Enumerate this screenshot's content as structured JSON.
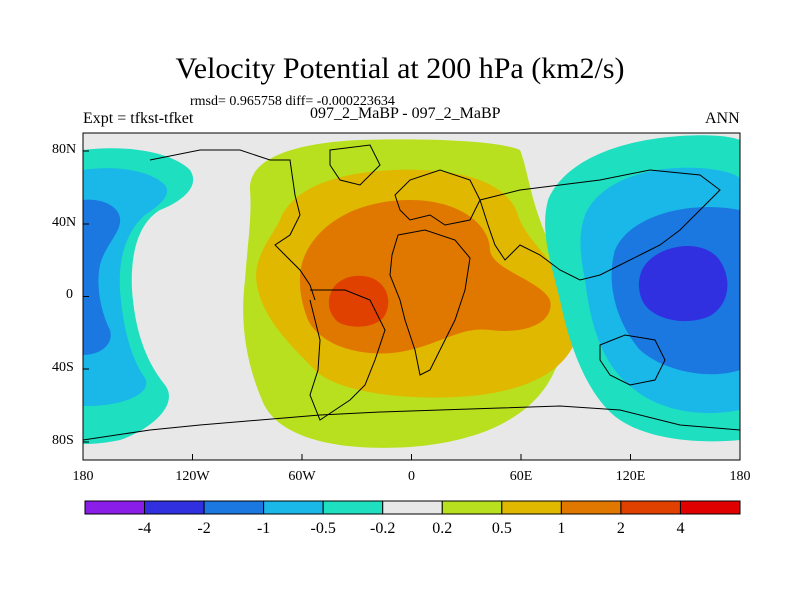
{
  "title": "Velocity Potential at 200 hPa (km2/s)",
  "stats_line": "rmsd= 0.965758 diff= -0.000223634",
  "expt_label": "Expt = tfkst-tfket",
  "case_label": "097_2_MaBP - 097_2_MaBP",
  "season_label": "ANN",
  "map": {
    "projection": "cylindrical-equidistant",
    "lon_range": [
      -180,
      180
    ],
    "lat_range": [
      -90,
      90
    ],
    "xticks": [
      "180",
      "120W",
      "60W",
      "0",
      "60E",
      "120E",
      "180"
    ],
    "yticks": [
      "80N",
      "40N",
      "0",
      "40S",
      "80S"
    ]
  },
  "colorbar": {
    "labels": [
      "-4",
      "-2",
      "-1",
      "-0.5",
      "-0.2",
      "0.2",
      "0.5",
      "1",
      "2",
      "4"
    ],
    "colors": [
      "#8a1ee8",
      "#3030e0",
      "#1a78e0",
      "#1ab8e8",
      "#1ee0c0",
      "#e8e8e8",
      "#b8e01e",
      "#e0b800",
      "#e07800",
      "#e04000",
      "#e00000"
    ]
  }
}
